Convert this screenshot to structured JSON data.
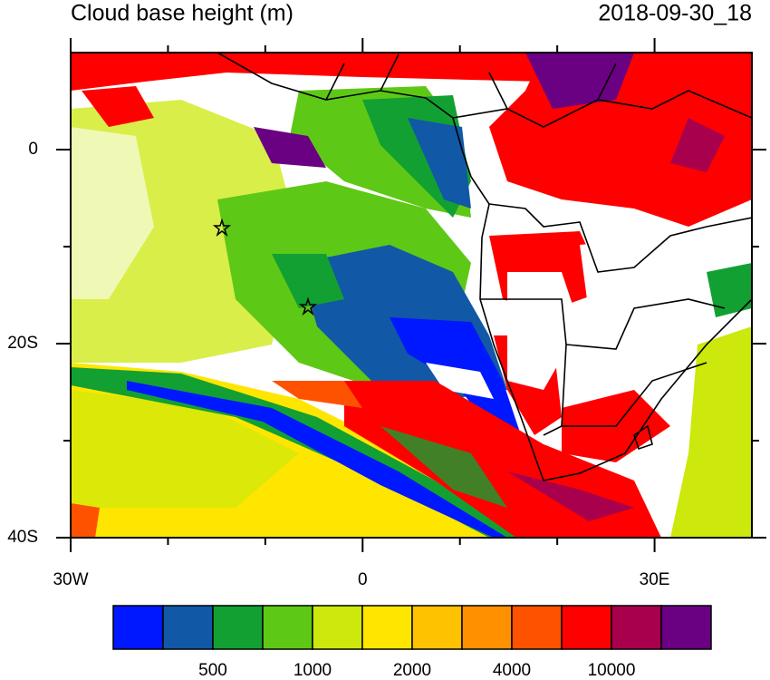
{
  "chart_data": {
    "type": "map",
    "title": "Cloud base height (m)",
    "subtitle": "2018-09-30_18",
    "xlim": [
      -30,
      40
    ],
    "ylim": [
      -40,
      10
    ],
    "xticks": [
      {
        "value": -30,
        "label": "30W"
      },
      0,
      {
        "value": 30,
        "label": "30E"
      }
    ],
    "xminorticks": [
      -20,
      -10,
      10,
      20
    ],
    "yticks": [
      0,
      {
        "value": -20,
        "label": "20S"
      },
      {
        "value": -40,
        "label": "40S"
      }
    ],
    "yminorticks": [
      -10,
      -30
    ],
    "colorbar": {
      "colors": [
        "#0018ff",
        "#1158a6",
        "#13a032",
        "#5ec816",
        "#cce80c",
        "#ffe600",
        "#ffc200",
        "#ff9000",
        "#ff5200",
        "#ff0000",
        "#a8004c",
        "#6a0082"
      ],
      "labels": [
        500,
        1000,
        2000,
        4000,
        10000
      ]
    }
  }
}
